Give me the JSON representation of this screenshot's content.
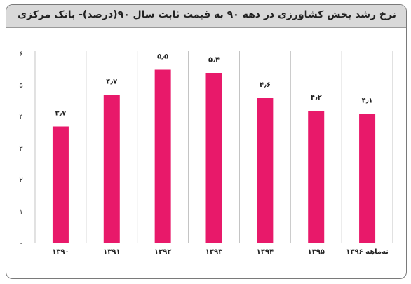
{
  "title": "نرخ رشد بخش کشاورزی در دهه ۹۰ به قیمت ثابت سال ۹۰(درصد)- بانک مرکزی",
  "colors": {
    "bar": "#e8196a",
    "grid": "#b5b5b5",
    "title_bg": "#d9d9d9"
  },
  "chart_data": {
    "type": "bar",
    "title": "نرخ رشد بخش کشاورزی در دهه ۹۰ به قیمت ثابت سال ۹۰(درصد)- بانک مرکزی",
    "categories": [
      "۱۳۹۰",
      "۱۳۹۱",
      "۱۳۹۲",
      "۱۳۹۳",
      "۱۳۹۴",
      "۱۳۹۵",
      "نه‌ماهه ۱۳۹۶"
    ],
    "values": [
      3.7,
      4.7,
      5.5,
      5.4,
      4.6,
      4.2,
      4.1
    ],
    "data_labels": [
      "۳٫۷",
      "۴٫۷",
      "۵٫۵",
      "۵٫۴",
      "۴٫۶",
      "۴٫۲",
      "۴٫۱"
    ],
    "ylim": [
      0,
      6
    ],
    "yticks": [
      0,
      1,
      2,
      3,
      4,
      5,
      6
    ],
    "ytick_labels": [
      "۰",
      "۱",
      "۲",
      "۳",
      "۴",
      "۵",
      "۶"
    ],
    "xlabel": "",
    "ylabel": "",
    "grid": "vertical"
  }
}
